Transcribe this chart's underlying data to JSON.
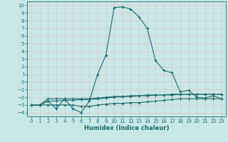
{
  "bg_color": "#c8e8e8",
  "grid_color": "#b0d4d4",
  "line_color": "#1a6b6b",
  "xlabel": "Humidex (Indice chaleur)",
  "xlim": [
    -0.5,
    23.5
  ],
  "ylim": [
    -4.5,
    10.5
  ],
  "yticks": [
    -4,
    -3,
    -2,
    -1,
    0,
    1,
    2,
    3,
    4,
    5,
    6,
    7,
    8,
    9,
    10
  ],
  "xticks": [
    0,
    1,
    2,
    3,
    4,
    5,
    6,
    7,
    8,
    9,
    10,
    11,
    12,
    13,
    14,
    15,
    16,
    17,
    18,
    19,
    20,
    21,
    22,
    23
  ],
  "curve1_x": [
    0,
    1,
    2,
    3,
    4,
    5,
    6,
    7,
    8,
    9,
    10,
    11,
    12,
    13,
    14,
    15,
    16,
    17,
    18,
    19,
    20,
    21,
    22,
    23
  ],
  "curve1_y": [
    -3,
    -3,
    -2.5,
    -3.5,
    -2.2,
    -3.5,
    -4,
    -2.5,
    1,
    3.5,
    9.7,
    9.8,
    9.5,
    8.5,
    7.0,
    2.8,
    1.5,
    1.2,
    -1.3,
    -1.1,
    -2.0,
    -2.1,
    -1.8,
    -2.2
  ],
  "curve2_x": [
    0,
    1,
    2,
    3,
    4,
    5,
    6,
    7,
    8,
    9,
    10,
    11,
    12,
    13,
    14,
    15,
    16,
    17,
    18,
    19,
    20,
    21,
    22,
    23
  ],
  "curve2_y": [
    -3,
    -3,
    -2.2,
    -2.2,
    -2.2,
    -2.2,
    -2.2,
    -2.2,
    -2.1,
    -2.0,
    -1.9,
    -1.9,
    -1.8,
    -1.8,
    -1.7,
    -1.7,
    -1.7,
    -1.6,
    -1.6,
    -1.6,
    -1.6,
    -1.6,
    -1.6,
    -1.6
  ],
  "curve3_x": [
    0,
    1,
    2,
    3,
    4,
    5,
    6,
    7,
    8,
    9,
    10,
    11,
    12,
    13,
    14,
    15,
    16,
    17,
    18,
    19,
    20,
    21,
    22,
    23
  ],
  "curve3_y": [
    -3,
    -3,
    -2.5,
    -2.5,
    -2.4,
    -2.4,
    -2.3,
    -2.3,
    -2.2,
    -2.1,
    -2.0,
    -1.9,
    -1.9,
    -1.8,
    -1.8,
    -1.7,
    -1.7,
    -1.7,
    -1.6,
    -1.6,
    -1.6,
    -1.6,
    -1.6,
    -1.6
  ],
  "curve4_x": [
    0,
    1,
    2,
    3,
    4,
    5,
    6,
    7,
    8,
    9,
    10,
    11,
    12,
    13,
    14,
    15,
    16,
    17,
    18,
    19,
    20,
    21,
    22,
    23
  ],
  "curve4_y": [
    -3,
    -3,
    -3,
    -3,
    -3.0,
    -3.0,
    -3.2,
    -3.2,
    -3.0,
    -2.9,
    -2.8,
    -2.8,
    -2.7,
    -2.7,
    -2.6,
    -2.5,
    -2.4,
    -2.3,
    -2.2,
    -2.2,
    -2.2,
    -2.2,
    -2.2,
    -2.2
  ]
}
